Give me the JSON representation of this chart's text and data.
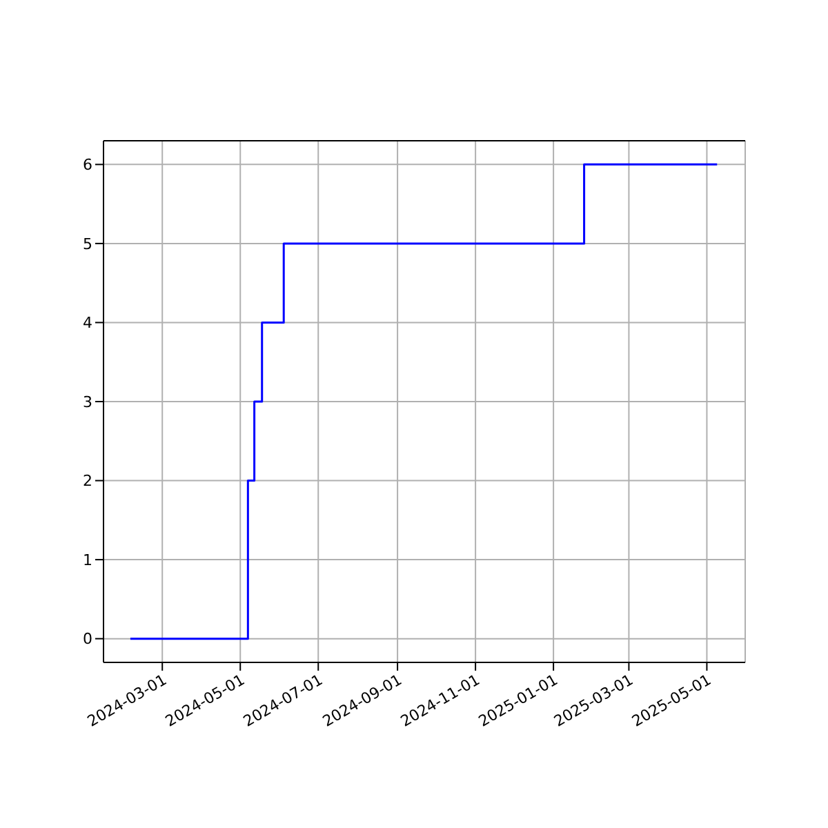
{
  "chart_data": {
    "type": "step",
    "x": [
      "2024-02-05",
      "2024-05-07",
      "2024-05-12",
      "2024-05-18",
      "2024-06-04",
      "2025-01-25",
      "2025-05-09"
    ],
    "series": [
      {
        "color": "#0000ff",
        "values": [
          0,
          2,
          3,
          4,
          5,
          6,
          6
        ]
      }
    ],
    "xlim": [
      "2024-01-15",
      "2025-05-31"
    ],
    "xticks": [
      "2024-03-01",
      "2024-05-01",
      "2024-07-01",
      "2024-09-01",
      "2024-11-01",
      "2025-01-01",
      "2025-03-01",
      "2025-05-01"
    ],
    "ylim": [
      -0.3,
      6.3
    ],
    "yticks": [
      0,
      1,
      2,
      3,
      4,
      5,
      6
    ],
    "grid": true
  }
}
